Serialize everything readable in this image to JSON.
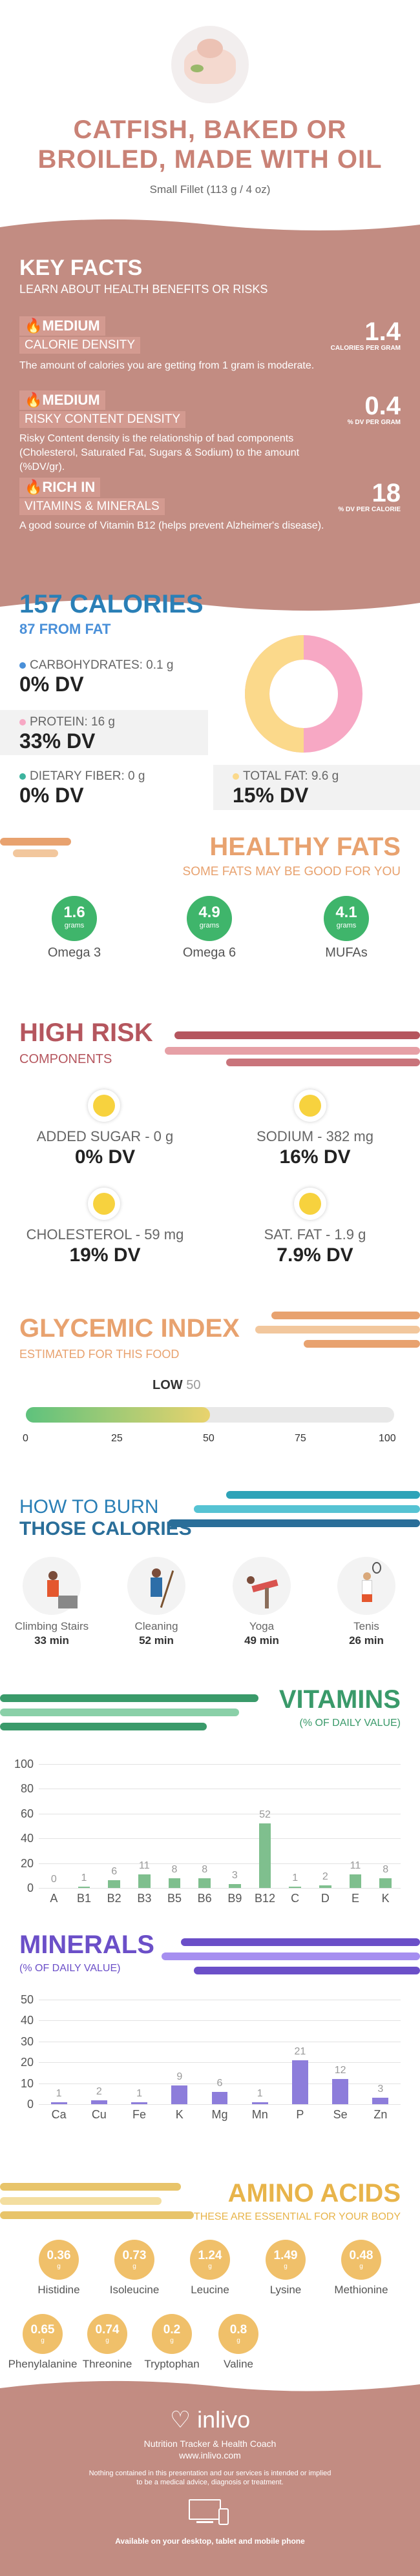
{
  "header": {
    "title_line1": "CATFISH, BAKED OR",
    "title_line2": "BROILED, MADE WITH OIL",
    "serving": "Small Fillet (113 g / 4 oz)"
  },
  "key_facts": {
    "title": "KEY FACTS",
    "subtitle": "LEARN ABOUT HEALTH BENEFITS OR RISKS",
    "items": [
      {
        "level": "MEDIUM",
        "name": "CALORIE DENSITY",
        "value": "1.4",
        "unit": "CALORIES PER GRAM",
        "desc": "The amount of calories you are getting from 1 gram is moderate."
      },
      {
        "level": "MEDIUM",
        "name": "RISKY CONTENT DENSITY",
        "value": "0.4",
        "unit": "% DV PER GRAM",
        "desc": "Risky Content density is the relationship of bad components (Cholesterol, Saturated Fat, Sugars & Sodium) to the amount (%DV/gr)."
      },
      {
        "level": "RICH  IN",
        "name": "VITAMINS & MINERALS",
        "value": "18",
        "unit": "% DV PER CALORIE",
        "desc": "A good source of Vitamin B12 (helps prevent Alzheimer's disease)."
      }
    ]
  },
  "calories": {
    "title": "157 CALORIES",
    "subtitle": "87 FROM FAT",
    "carbs_label": "CARBOHYDRATES: 0.1 g",
    "carbs_dv": "0% DV",
    "protein_label": "PROTEIN: 16 g",
    "protein_dv": "33% DV",
    "fiber_label": "DIETARY FIBER: 0 g",
    "fiber_dv": "0% DV",
    "fat_label": "TOTAL FAT: 9.6 g",
    "fat_dv": "15% DV",
    "colors": {
      "carbs": "#4a90d9",
      "protein": "#f7a8c4",
      "fiber": "#3db39e",
      "fat": "#fbd98b"
    }
  },
  "healthy_fats": {
    "title": "HEALTHY FATS",
    "subtitle": "SOME FATS MAY BE GOOD FOR YOU",
    "items": [
      {
        "value": "1.6",
        "unit": "grams",
        "name": "Omega 3"
      },
      {
        "value": "4.9",
        "unit": "grams",
        "name": "Omega 6"
      },
      {
        "value": "4.1",
        "unit": "grams",
        "name": "MUFAs"
      }
    ]
  },
  "high_risk": {
    "title": "HIGH RISK",
    "subtitle": "COMPONENTS",
    "items": [
      {
        "label": "ADDED SUGAR - 0 g",
        "dv": "0% DV"
      },
      {
        "label": "SODIUM - 382 mg",
        "dv": "16% DV"
      },
      {
        "label": "CHOLESTEROL - 59 mg",
        "dv": "19% DV"
      },
      {
        "label": "SAT. FAT - 1.9 g",
        "dv": "7.9% DV"
      }
    ]
  },
  "glycemic": {
    "title": "GLYCEMIC INDEX",
    "subtitle": "ESTIMATED FOR THIS FOOD",
    "level": "LOW",
    "value": "50",
    "fraction": 0.5,
    "ticks": [
      "0",
      "25",
      "50",
      "75",
      "100"
    ]
  },
  "burn": {
    "title1": "HOW TO BURN",
    "title2": "THOSE CALORIES",
    "items": [
      {
        "name": "Climbing Stairs",
        "time": "33 min",
        "icon": "stairs-climber-icon"
      },
      {
        "name": "Cleaning",
        "time": "52 min",
        "icon": "cleaning-person-icon"
      },
      {
        "name": "Yoga",
        "time": "49 min",
        "icon": "yoga-pose-icon"
      },
      {
        "name": "Tenis",
        "time": "26 min",
        "icon": "tennis-player-icon"
      }
    ]
  },
  "vitamins": {
    "title": "VITAMINS",
    "subtitle": "(% OF DAILY VALUE)"
  },
  "minerals": {
    "title": "MINERALS",
    "subtitle": "(% OF DAILY VALUE)"
  },
  "chart_data": [
    {
      "type": "bar",
      "categories": [
        "A",
        "B1",
        "B2",
        "B3",
        "B5",
        "B6",
        "B9",
        "B12",
        "C",
        "D",
        "E",
        "K"
      ],
      "values": [
        0,
        1,
        6,
        11,
        8,
        8,
        3,
        52,
        1,
        2,
        11,
        8
      ],
      "ylim": [
        0,
        100
      ],
      "yticks": [
        "0",
        "20",
        "40",
        "60",
        "80",
        "100"
      ],
      "grid": true,
      "color": "#7fbf8e"
    },
    {
      "type": "bar",
      "categories": [
        "Ca",
        "Cu",
        "Fe",
        "K",
        "Mg",
        "Mn",
        "P",
        "Se",
        "Zn"
      ],
      "values": [
        1,
        2,
        1,
        9,
        6,
        1,
        21,
        12,
        3
      ],
      "ylim": [
        0,
        50
      ],
      "yticks": [
        "0",
        "10",
        "20",
        "30",
        "40",
        "50"
      ],
      "grid": true,
      "color": "#8d7ddb"
    }
  ],
  "amino": {
    "title": "AMINO ACIDS",
    "subtitle": "THESE ARE ESSENTIAL FOR YOUR BODY",
    "unit": "g",
    "items": [
      {
        "value": "0.36",
        "name": "Histidine"
      },
      {
        "value": "0.73",
        "name": "Isoleucine"
      },
      {
        "value": "1.24",
        "name": "Leucine"
      },
      {
        "value": "1.49",
        "name": "Lysine"
      },
      {
        "value": "0.48",
        "name": "Methionine"
      },
      {
        "value": "0.65",
        "name": "Phenylalanine"
      },
      {
        "value": "0.74",
        "name": "Threonine"
      },
      {
        "value": "0.2",
        "name": "Tryptophan"
      },
      {
        "value": "0.8",
        "name": "Valine"
      }
    ]
  },
  "footer": {
    "brand": "inlivo",
    "tagline": "Nutrition Tracker & Health Coach",
    "url": "www.inlivo.com",
    "disclaimer1": "Nothing contained in this presentation and our services is intended or implied",
    "disclaimer2": "to be a medical advice, diagnosis or treatment.",
    "available": "Available on your desktop, tablet and mobile phone"
  }
}
